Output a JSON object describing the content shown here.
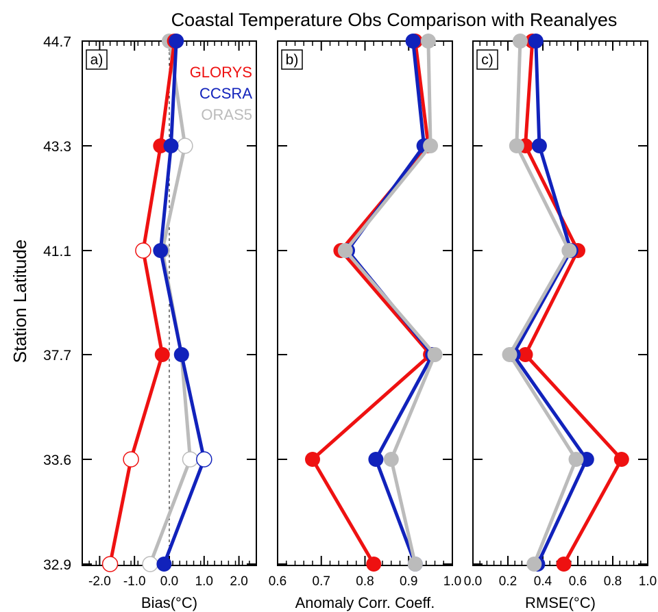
{
  "title": "Coastal Temperature Obs Comparison with Reanalyes",
  "ylabel": "Station Latitude",
  "colors": {
    "GLORYS": "#ee1111",
    "CCSRA": "#1122bb",
    "ORAS5": "#bbbbbb"
  },
  "chart_data": [
    {
      "type": "line",
      "panel_label": "a)",
      "xlabel": "Bias(°C)",
      "xlim": [
        -2.5,
        2.5
      ],
      "xticks": [
        -2.0,
        -1.0,
        0.0,
        1.0,
        2.0
      ],
      "xtick_labels": [
        "-2.0",
        "-1.0",
        "0.0",
        "1.0",
        "2.0"
      ],
      "y_latitudes": [
        44.7,
        43.3,
        41.1,
        37.7,
        33.6,
        32.9
      ],
      "ytick_labels": [
        "44.7",
        "43.3",
        "41.1",
        "37.7",
        "33.6",
        "32.9"
      ],
      "zero_line": true,
      "legend": [
        "GLORYS",
        "CCSRA",
        "ORAS5"
      ],
      "series": [
        {
          "name": "GLORYS",
          "values": [
            0.15,
            -0.25,
            -0.75,
            -0.2,
            -1.1,
            -1.7
          ],
          "filled": [
            true,
            true,
            false,
            true,
            false,
            false
          ]
        },
        {
          "name": "CCSRA",
          "values": [
            0.2,
            0.05,
            -0.25,
            0.35,
            1.0,
            -0.15
          ],
          "filled": [
            true,
            true,
            true,
            true,
            false,
            true
          ]
        },
        {
          "name": "ORAS5",
          "values": [
            0.0,
            0.45,
            -0.2,
            0.35,
            0.6,
            -0.55
          ],
          "filled": [
            true,
            false,
            true,
            true,
            false,
            false
          ]
        }
      ]
    },
    {
      "type": "line",
      "panel_label": "b)",
      "xlabel": "Anomaly Corr. Coeff.",
      "xlim": [
        0.6,
        1.0
      ],
      "xticks": [
        0.6,
        0.7,
        0.8,
        0.9,
        1.0
      ],
      "xtick_labels": [
        "0.6",
        "0.7",
        "0.8",
        "0.9",
        "1.0"
      ],
      "y_latitudes": [
        44.7,
        43.3,
        41.1,
        37.7,
        33.6,
        32.9
      ],
      "series": [
        {
          "name": "GLORYS",
          "values": [
            0.915,
            0.945,
            0.745,
            0.95,
            0.68,
            0.82
          ],
          "filled": [
            true,
            true,
            true,
            true,
            true,
            true
          ]
        },
        {
          "name": "CCSRA",
          "values": [
            0.91,
            0.935,
            0.76,
            0.955,
            0.825,
            0.915
          ],
          "filled": [
            true,
            true,
            true,
            true,
            true,
            true
          ]
        },
        {
          "name": "ORAS5",
          "values": [
            0.945,
            0.95,
            0.755,
            0.96,
            0.86,
            0.915
          ],
          "filled": [
            true,
            true,
            true,
            true,
            true,
            true
          ]
        }
      ]
    },
    {
      "type": "line",
      "panel_label": "c)",
      "xlabel": "RMSE(°C)",
      "xlim": [
        0.0,
        1.0
      ],
      "xticks": [
        0.0,
        0.2,
        0.4,
        0.6,
        0.8,
        1.0
      ],
      "xtick_labels": [
        "0.0",
        "0.2",
        "0.4",
        "0.6",
        "0.8",
        "1.0"
      ],
      "y_latitudes": [
        44.7,
        43.3,
        41.1,
        37.7,
        33.6,
        32.9
      ],
      "series": [
        {
          "name": "GLORYS",
          "values": [
            0.34,
            0.3,
            0.6,
            0.3,
            0.85,
            0.52
          ],
          "filled": [
            true,
            true,
            true,
            true,
            true,
            true
          ]
        },
        {
          "name": "CCSRA",
          "values": [
            0.36,
            0.38,
            0.56,
            0.23,
            0.65,
            0.37
          ],
          "filled": [
            true,
            true,
            true,
            true,
            true,
            true
          ]
        },
        {
          "name": "ORAS5",
          "values": [
            0.27,
            0.25,
            0.55,
            0.21,
            0.59,
            0.35
          ],
          "filled": [
            true,
            true,
            true,
            true,
            true,
            true
          ]
        }
      ]
    }
  ]
}
